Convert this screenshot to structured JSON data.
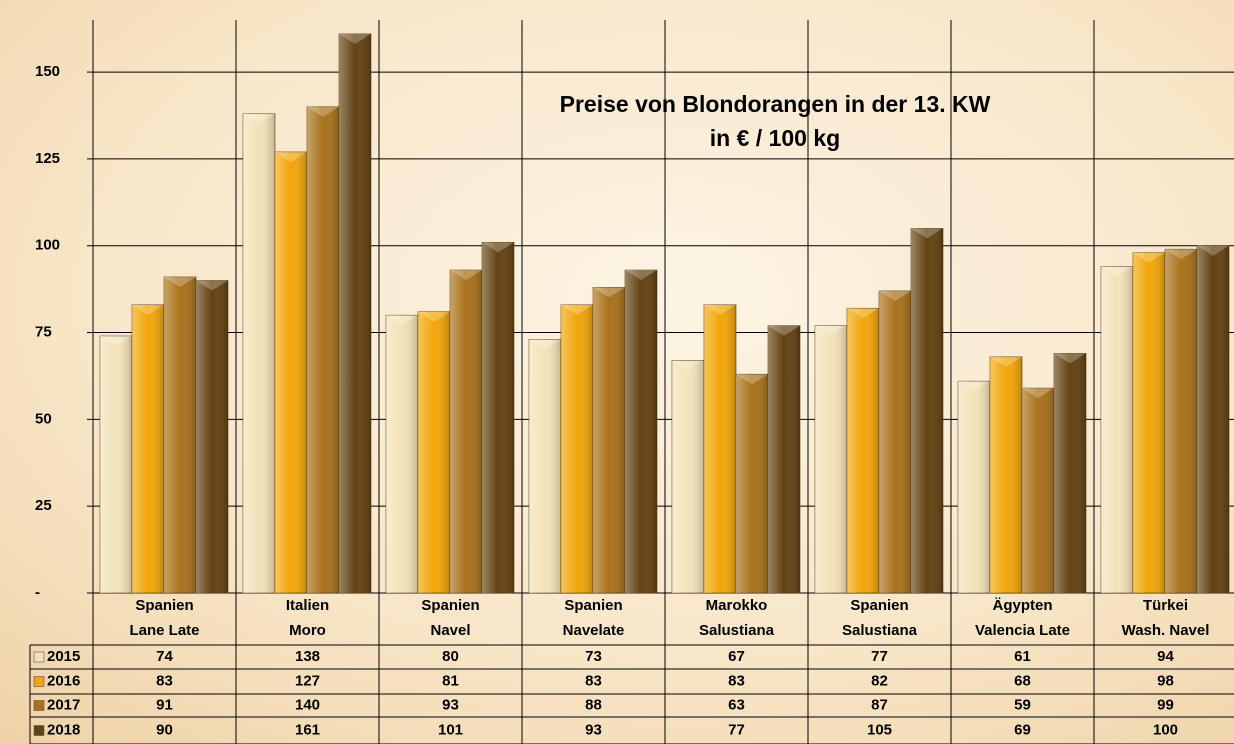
{
  "chart_data": {
    "type": "bar",
    "title": "Preise von Blondorangen in der 13. KW",
    "subtitle": "in € / 100 kg",
    "categories": [
      [
        "Spanien",
        "Lane Late"
      ],
      [
        "Italien",
        "Moro"
      ],
      [
        "Spanien",
        "Navel"
      ],
      [
        "Spanien",
        "Navelate"
      ],
      [
        "Marokko",
        "Salustiana"
      ],
      [
        "Spanien",
        "Salustiana"
      ],
      [
        "Ägypten",
        "Valencia Late"
      ],
      [
        "Türkei",
        "Wash. Navel"
      ]
    ],
    "series": [
      {
        "name": "2015",
        "color": "#f3e2b8",
        "values": [
          74,
          138,
          80,
          73,
          67,
          77,
          61,
          94
        ]
      },
      {
        "name": "2016",
        "color": "#f2a60a",
        "values": [
          83,
          127,
          81,
          83,
          83,
          82,
          68,
          98
        ]
      },
      {
        "name": "2017",
        "color": "#a9721c",
        "values": [
          91,
          140,
          93,
          88,
          63,
          87,
          59,
          99
        ]
      },
      {
        "name": "2018",
        "color": "#634212",
        "values": [
          90,
          161,
          101,
          93,
          77,
          105,
          69,
          100
        ]
      }
    ],
    "ylim": [
      0,
      165
    ],
    "yticks": [
      {
        "value": 0,
        "label": "-"
      },
      25,
      50,
      75,
      100,
      125,
      150
    ],
    "grid": true,
    "data_table": true
  }
}
